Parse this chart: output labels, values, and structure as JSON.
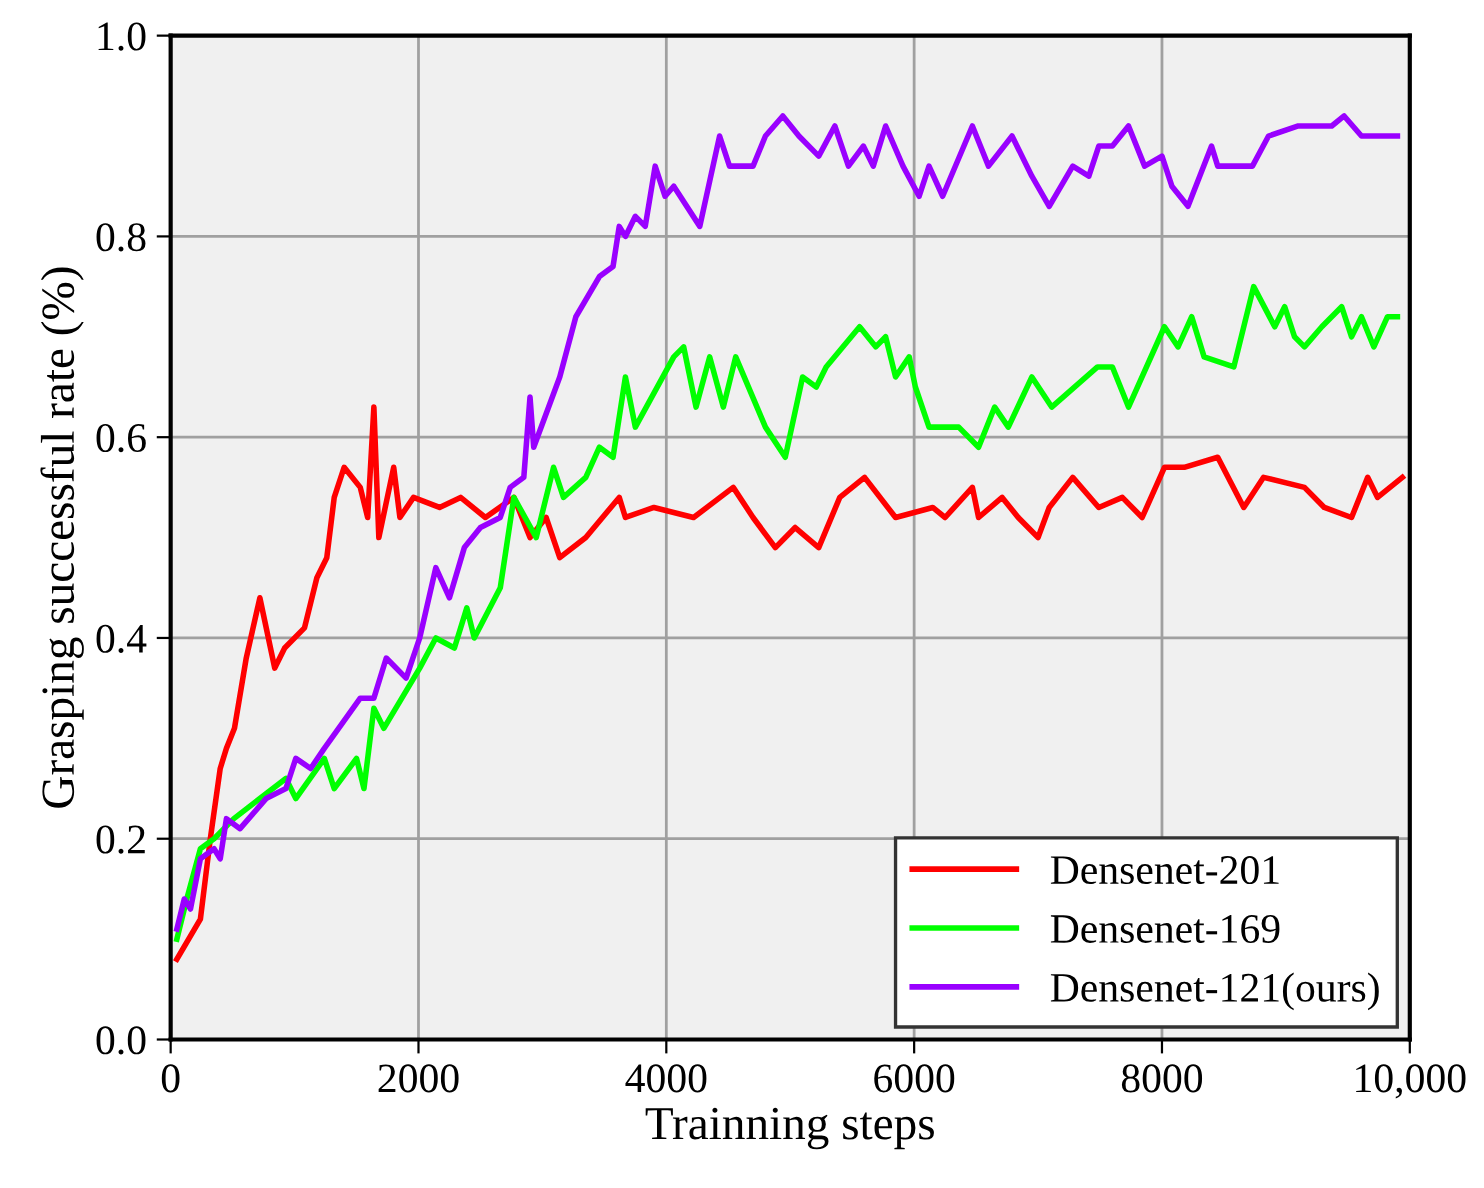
{
  "chart_data": {
    "type": "line",
    "xlabel": "Trainning steps",
    "ylabel": "Grasping successful rate (%)",
    "xlim": [
      0,
      10000
    ],
    "ylim": [
      0,
      1.0
    ],
    "xticks": [
      0,
      2000,
      4000,
      6000,
      8000,
      {
        "value": 10000,
        "label": "10,000"
      }
    ],
    "yticks": [
      {
        "value": 0,
        "label": "0.0"
      },
      {
        "value": 0.2,
        "label": "0.2"
      },
      {
        "value": 0.4,
        "label": "0.4"
      },
      {
        "value": 0.6,
        "label": "0.6"
      },
      {
        "value": 0.8,
        "label": "0.8"
      },
      {
        "value": 1.0,
        "label": "1.0"
      }
    ],
    "grid": true,
    "legend": "bottom right",
    "marker": "none",
    "line_style": "solid",
    "series": [
      {
        "name": "Densenet-201",
        "color": "#ff0000",
        "x": [
          50,
          240,
          320,
          400,
          450,
          515,
          610,
          720,
          840,
          920,
          1080,
          1180,
          1260,
          1320,
          1400,
          1530,
          1590,
          1640,
          1680,
          1800,
          1850,
          1960,
          2170,
          2340,
          2540,
          2770,
          2900,
          3030,
          3140,
          3350,
          3620,
          3670,
          3900,
          4220,
          4540,
          4700,
          4880,
          5040,
          5230,
          5400,
          5600,
          5850,
          6150,
          6250,
          6470,
          6520,
          6710,
          6840,
          7000,
          7090,
          7280,
          7490,
          7680,
          7840,
          8020,
          8180,
          8450,
          8660,
          8820,
          9150,
          9310,
          9530,
          9660,
          9740,
          9940
        ],
        "values": [
          0.08,
          0.12,
          0.2,
          0.27,
          0.29,
          0.31,
          0.38,
          0.44,
          0.37,
          0.39,
          0.41,
          0.46,
          0.48,
          0.54,
          0.57,
          0.55,
          0.52,
          0.63,
          0.5,
          0.57,
          0.52,
          0.54,
          0.53,
          0.54,
          0.52,
          0.54,
          0.5,
          0.52,
          0.48,
          0.5,
          0.54,
          0.52,
          0.53,
          0.52,
          0.55,
          0.52,
          0.49,
          0.51,
          0.49,
          0.54,
          0.56,
          0.52,
          0.53,
          0.52,
          0.55,
          0.52,
          0.54,
          0.52,
          0.5,
          0.53,
          0.56,
          0.53,
          0.54,
          0.52,
          0.57,
          0.57,
          0.58,
          0.53,
          0.56,
          0.55,
          0.53,
          0.52,
          0.56,
          0.54,
          0.56
        ]
      },
      {
        "name": "Densenet-169",
        "color": "#00ff00",
        "x": [
          50,
          130,
          240,
          350,
          510,
          720,
          930,
          1010,
          1240,
          1320,
          1500,
          1560,
          1640,
          1720,
          2010,
          2140,
          2290,
          2390,
          2450,
          2660,
          2770,
          2950,
          3090,
          3170,
          3350,
          3460,
          3570,
          3670,
          3750,
          4060,
          4140,
          4240,
          4350,
          4460,
          4560,
          4800,
          4960,
          5100,
          5210,
          5290,
          5560,
          5690,
          5770,
          5850,
          5960,
          6010,
          6120,
          6360,
          6520,
          6650,
          6760,
          6950,
          7110,
          7480,
          7600,
          7730,
          8020,
          8130,
          8240,
          8340,
          8580,
          8740,
          8910,
          8990,
          9070,
          9150,
          9290,
          9450,
          9530,
          9610,
          9710,
          9820,
          9900
        ],
        "values": [
          0.1,
          0.14,
          0.19,
          0.2,
          0.22,
          0.24,
          0.26,
          0.24,
          0.28,
          0.25,
          0.28,
          0.25,
          0.33,
          0.31,
          0.37,
          0.4,
          0.39,
          0.43,
          0.4,
          0.45,
          0.54,
          0.5,
          0.57,
          0.54,
          0.56,
          0.59,
          0.58,
          0.66,
          0.61,
          0.68,
          0.69,
          0.63,
          0.68,
          0.63,
          0.68,
          0.61,
          0.58,
          0.66,
          0.65,
          0.67,
          0.71,
          0.69,
          0.7,
          0.66,
          0.68,
          0.65,
          0.61,
          0.61,
          0.59,
          0.63,
          0.61,
          0.66,
          0.63,
          0.67,
          0.67,
          0.63,
          0.71,
          0.69,
          0.72,
          0.68,
          0.67,
          0.75,
          0.71,
          0.73,
          0.7,
          0.69,
          0.71,
          0.73,
          0.7,
          0.72,
          0.69,
          0.72,
          0.72
        ]
      },
      {
        "name": "Densenet-121(ours)",
        "color": "#9900ff",
        "x": [
          50,
          110,
          160,
          240,
          350,
          400,
          450,
          560,
          770,
          930,
          1010,
          1130,
          1240,
          1530,
          1640,
          1740,
          1900,
          2010,
          2140,
          2250,
          2370,
          2500,
          2660,
          2740,
          2850,
          2900,
          2930,
          3140,
          3270,
          3460,
          3570,
          3620,
          3670,
          3750,
          3830,
          3910,
          3990,
          4060,
          4270,
          4430,
          4510,
          4700,
          4800,
          4940,
          5070,
          5230,
          5360,
          5470,
          5590,
          5670,
          5770,
          5910,
          6040,
          6120,
          6230,
          6470,
          6600,
          6790,
          6950,
          7090,
          7280,
          7410,
          7490,
          7600,
          7730,
          7860,
          8000,
          8080,
          8210,
          8400,
          8450,
          8730,
          8860,
          9100,
          9370,
          9470,
          9610,
          9900
        ],
        "values": [
          0.11,
          0.14,
          0.13,
          0.18,
          0.19,
          0.18,
          0.22,
          0.21,
          0.24,
          0.25,
          0.28,
          0.27,
          0.29,
          0.34,
          0.34,
          0.38,
          0.36,
          0.4,
          0.47,
          0.44,
          0.49,
          0.51,
          0.52,
          0.55,
          0.56,
          0.64,
          0.59,
          0.66,
          0.72,
          0.76,
          0.77,
          0.81,
          0.8,
          0.82,
          0.81,
          0.87,
          0.84,
          0.85,
          0.81,
          0.9,
          0.87,
          0.87,
          0.9,
          0.92,
          0.9,
          0.88,
          0.91,
          0.87,
          0.89,
          0.87,
          0.91,
          0.87,
          0.84,
          0.87,
          0.84,
          0.91,
          0.87,
          0.9,
          0.86,
          0.83,
          0.87,
          0.86,
          0.89,
          0.89,
          0.91,
          0.87,
          0.88,
          0.85,
          0.83,
          0.89,
          0.87,
          0.87,
          0.9,
          0.91,
          0.91,
          0.92,
          0.9,
          0.9
        ]
      }
    ]
  }
}
